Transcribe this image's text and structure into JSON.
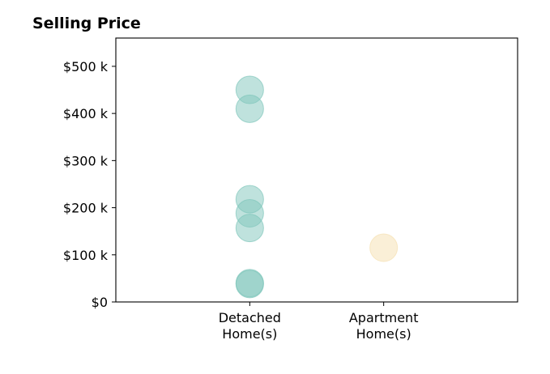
{
  "chart_data": {
    "type": "scatter",
    "title": "Selling Price",
    "xlabel": "",
    "ylabel": "",
    "categories": [
      {
        "lines": [
          "Detached",
          "Home(s)"
        ],
        "color": "#7fc6bb"
      },
      {
        "lines": [
          "Apartment",
          "Home(s)"
        ],
        "color": "#f5dfb0"
      }
    ],
    "xlim": [
      0,
      3
    ],
    "ylim": [
      0,
      560000
    ],
    "yticks": [
      {
        "value": 0,
        "label": "$0"
      },
      {
        "value": 100000,
        "label": "$100 k"
      },
      {
        "value": 200000,
        "label": "$200 k"
      },
      {
        "value": 300000,
        "label": "$300 k"
      },
      {
        "value": 400000,
        "label": "$400 k"
      },
      {
        "value": 500000,
        "label": "$500 k"
      }
    ],
    "series": [
      {
        "category_index": 0,
        "values": [
          450000,
          410000,
          218000,
          188000,
          157000,
          40000,
          38000
        ]
      },
      {
        "category_index": 1,
        "values": [
          115000
        ]
      }
    ],
    "grid": false,
    "legend": "none"
  }
}
